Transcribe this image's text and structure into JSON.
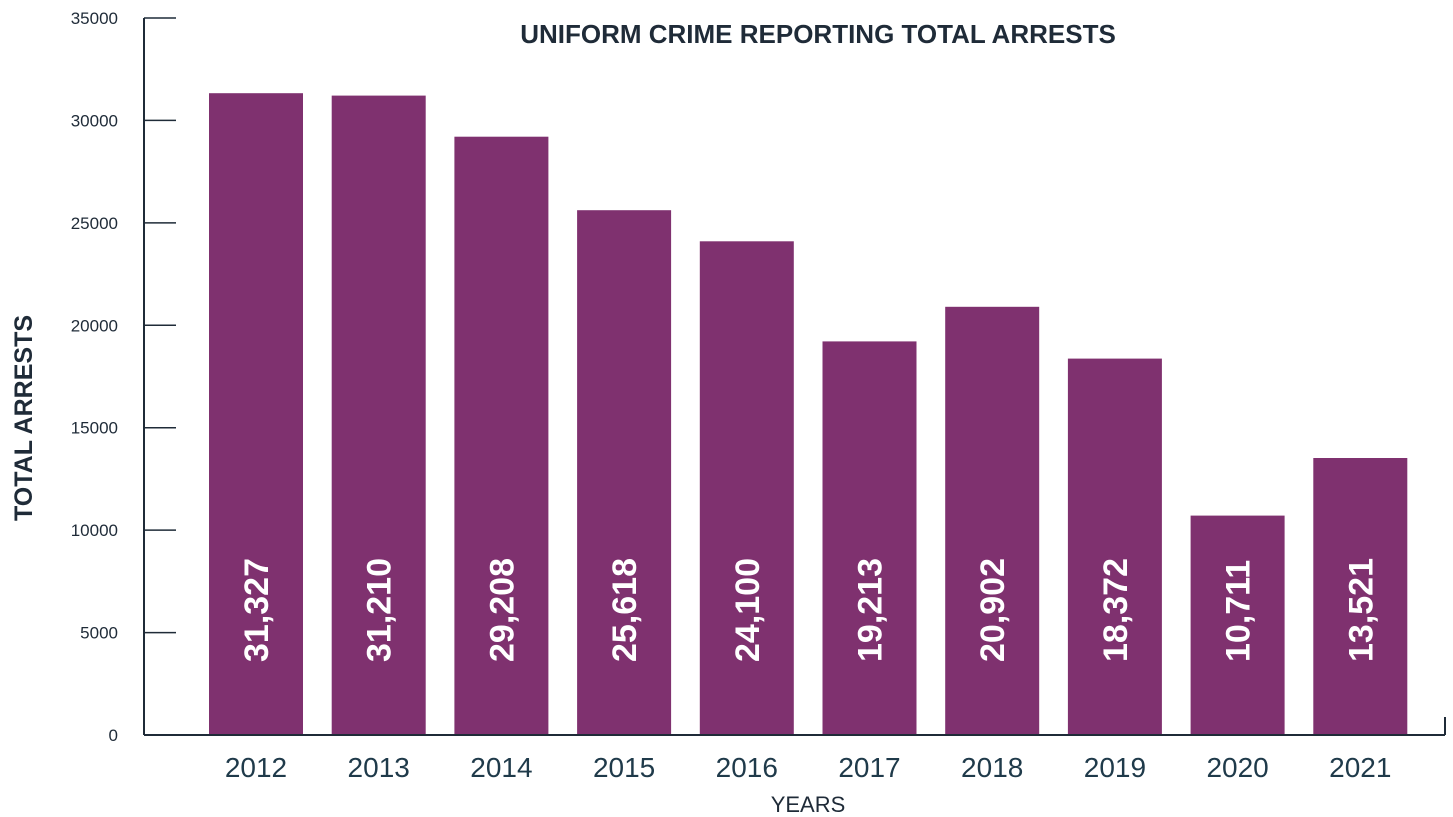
{
  "chart_data": {
    "type": "bar",
    "title": "UNIFORM CRIME REPORTING TOTAL ARRESTS",
    "xlabel": "YEARS",
    "ylabel": "TOTAL ARRESTS",
    "categories": [
      "2012",
      "2013",
      "2014",
      "2015",
      "2016",
      "2017",
      "2018",
      "2019",
      "2020",
      "2021"
    ],
    "values": [
      31327,
      31210,
      29208,
      25618,
      24100,
      19213,
      20902,
      18372,
      10711,
      13521
    ],
    "data_labels": [
      "31,327",
      "31,210",
      "29,208",
      "25,618",
      "24,100",
      "19,213",
      "20,902",
      "18,372",
      "10,711",
      "13,521"
    ],
    "ylim": [
      0,
      35000
    ],
    "yticks": [
      "0",
      "5000",
      "10000",
      "15000",
      "20000",
      "25000",
      "30000",
      "35000"
    ],
    "grid": false,
    "legend": "none",
    "bar_color": "#7f316f",
    "axis_color": "#1f2b38"
  }
}
